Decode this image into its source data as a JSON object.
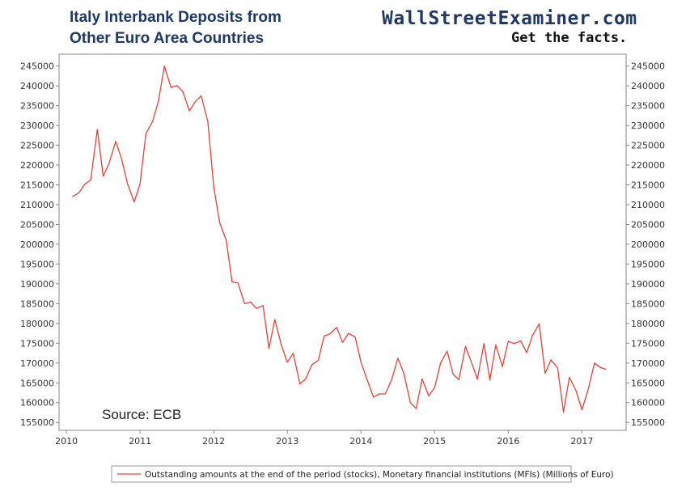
{
  "header": {
    "title_line1": "Italy Interbank Deposits from",
    "title_line2": "Other Euro Area Countries",
    "brand": "WallStreetExaminer.com",
    "tagline": "Get the facts."
  },
  "annotation": {
    "source": "Source: ECB"
  },
  "colors": {
    "title": "#1f3864",
    "series": "#e8403b",
    "axis": "#888888"
  },
  "chart_data": {
    "type": "line",
    "title": "Italy Interbank Deposits from Other Euro Area Countries",
    "xlabel": "",
    "ylabel": "",
    "xlim": [
      2009.9,
      2017.6
    ],
    "ylim": [
      153000,
      248000
    ],
    "x_ticks": [
      2010,
      2011,
      2012,
      2013,
      2014,
      2015,
      2016,
      2017
    ],
    "y_ticks": [
      155000,
      160000,
      165000,
      170000,
      175000,
      180000,
      185000,
      190000,
      195000,
      200000,
      205000,
      210000,
      215000,
      220000,
      225000,
      230000,
      235000,
      240000,
      245000
    ],
    "y_axes": [
      "left",
      "right"
    ],
    "grid": false,
    "legend_position": "bottom",
    "series": [
      {
        "name": "Outstanding amounts at the end of the period (stocks), Monetary financial institutions (MFIs) (Millions of Euro)",
        "color": "#e8403b",
        "points": [
          [
            2010.08,
            212000
          ],
          [
            2010.17,
            213000
          ],
          [
            2010.25,
            215200
          ],
          [
            2010.33,
            216200
          ],
          [
            2010.42,
            229000
          ],
          [
            2010.5,
            217200
          ],
          [
            2010.58,
            220500
          ],
          [
            2010.67,
            226000
          ],
          [
            2010.75,
            221500
          ],
          [
            2010.83,
            215200
          ],
          [
            2010.92,
            210700
          ],
          [
            2011.0,
            215200
          ],
          [
            2011.08,
            228000
          ],
          [
            2011.17,
            231000
          ],
          [
            2011.25,
            236200
          ],
          [
            2011.33,
            245000
          ],
          [
            2011.42,
            239600
          ],
          [
            2011.5,
            240100
          ],
          [
            2011.58,
            238600
          ],
          [
            2011.67,
            233700
          ],
          [
            2011.75,
            236000
          ],
          [
            2011.83,
            237500
          ],
          [
            2011.92,
            231000
          ],
          [
            2012.0,
            214500
          ],
          [
            2012.08,
            205500
          ],
          [
            2012.17,
            201000
          ],
          [
            2012.25,
            190500
          ],
          [
            2012.33,
            190200
          ],
          [
            2012.42,
            185000
          ],
          [
            2012.5,
            185400
          ],
          [
            2012.58,
            183800
          ],
          [
            2012.67,
            184500
          ],
          [
            2012.75,
            173700
          ],
          [
            2012.83,
            181000
          ],
          [
            2012.92,
            174500
          ],
          [
            2013.0,
            170200
          ],
          [
            2013.08,
            172500
          ],
          [
            2013.17,
            164700
          ],
          [
            2013.25,
            166000
          ],
          [
            2013.33,
            169500
          ],
          [
            2013.42,
            170700
          ],
          [
            2013.5,
            176800
          ],
          [
            2013.58,
            177400
          ],
          [
            2013.67,
            179000
          ],
          [
            2013.75,
            175200
          ],
          [
            2013.83,
            177500
          ],
          [
            2013.92,
            176600
          ],
          [
            2014.0,
            170200
          ],
          [
            2014.08,
            166000
          ],
          [
            2014.17,
            161400
          ],
          [
            2014.25,
            162200
          ],
          [
            2014.33,
            162200
          ],
          [
            2014.42,
            166000
          ],
          [
            2014.5,
            171200
          ],
          [
            2014.58,
            167500
          ],
          [
            2014.67,
            160000
          ],
          [
            2014.75,
            158500
          ],
          [
            2014.83,
            166000
          ],
          [
            2014.92,
            161700
          ],
          [
            2015.0,
            163800
          ],
          [
            2015.08,
            170000
          ],
          [
            2015.17,
            173000
          ],
          [
            2015.25,
            167200
          ],
          [
            2015.33,
            165800
          ],
          [
            2015.42,
            174200
          ],
          [
            2015.5,
            170200
          ],
          [
            2015.58,
            165900
          ],
          [
            2015.67,
            174900
          ],
          [
            2015.75,
            165700
          ],
          [
            2015.83,
            174600
          ],
          [
            2015.92,
            169100
          ],
          [
            2016.0,
            175500
          ],
          [
            2016.08,
            174900
          ],
          [
            2016.17,
            175600
          ],
          [
            2016.25,
            172600
          ],
          [
            2016.33,
            177000
          ],
          [
            2016.42,
            179900
          ],
          [
            2016.5,
            167400
          ],
          [
            2016.58,
            170800
          ],
          [
            2016.67,
            168800
          ],
          [
            2016.75,
            157600
          ],
          [
            2016.83,
            166400
          ],
          [
            2016.92,
            163000
          ],
          [
            2017.0,
            158200
          ],
          [
            2017.08,
            163000
          ],
          [
            2017.17,
            170000
          ],
          [
            2017.25,
            168900
          ],
          [
            2017.33,
            168400
          ]
        ]
      }
    ]
  }
}
